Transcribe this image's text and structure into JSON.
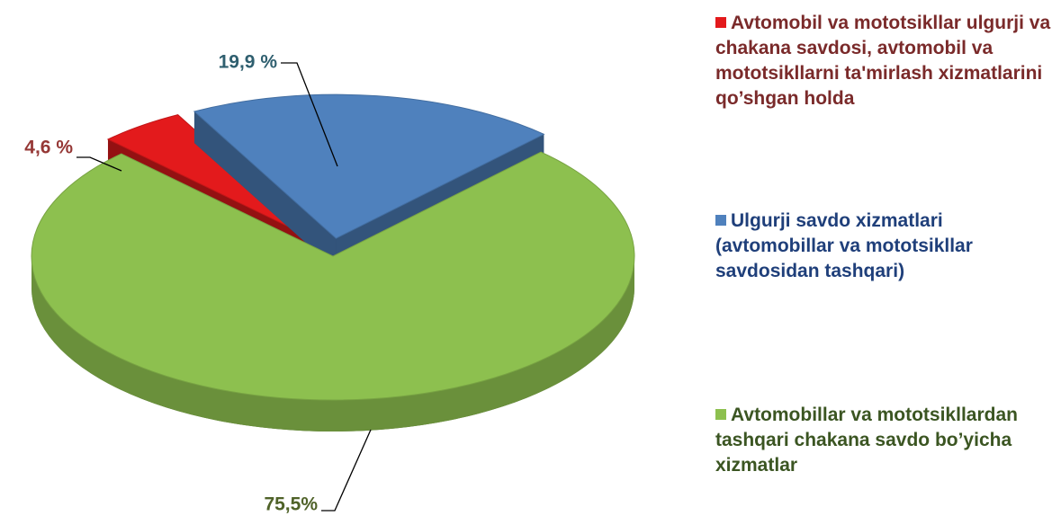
{
  "chart_data": {
    "type": "pie",
    "categories": [
      "Avtomobil va mototsikllar ulgurji va chakana savdosi, avtomobil va mototsikllarni ta'mirlash xizmatlarini qo’shgan holda",
      "Ulgurji savdo xizmatlari (avtomobillar va mototsikllar savdosidan tashqari)",
      "Avtomobillar va mototsikllardan tashqari chakana savdo bo’yicha xizmatlar"
    ],
    "values": [
      4.6,
      19.9,
      75.5
    ],
    "value_labels": [
      "4,6 %",
      "19,9 %",
      "75,5%"
    ],
    "colors": [
      "#e31a1c",
      "#4f81bd",
      "#8dc04f"
    ],
    "label_colors": [
      "#7a2a2a",
      "#1f3f7a",
      "#3b5522"
    ],
    "value_label_colors": [
      "#953735",
      "#2f5f6f",
      "#4f6228"
    ]
  }
}
